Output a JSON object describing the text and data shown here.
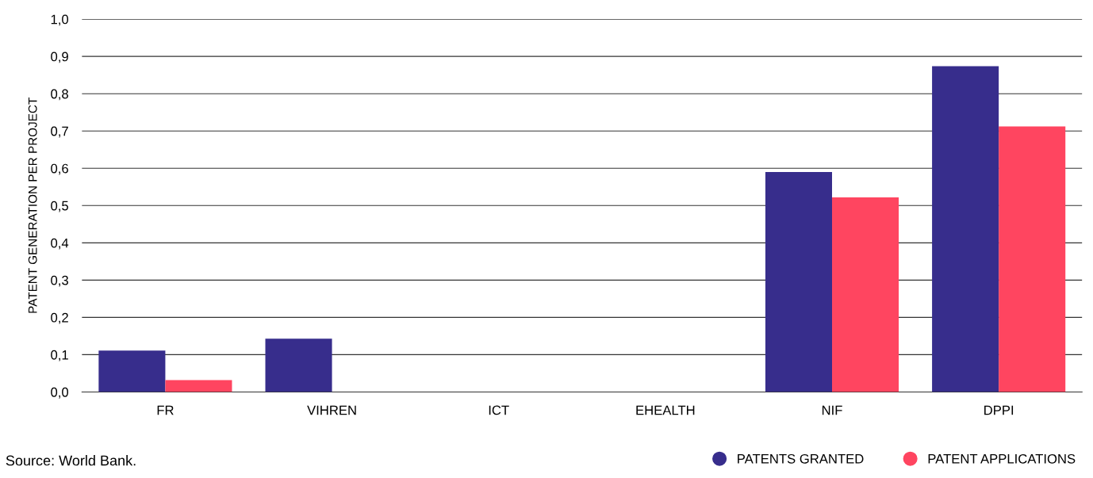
{
  "chart_data": {
    "type": "bar",
    "ylabel": "PATENT GENERATION PER PROJECT",
    "categories": [
      "FR",
      "VIHREN",
      "ICT",
      "EHEALTH",
      "NIF",
      "DPPI"
    ],
    "series": [
      {
        "name": "PATENTS GRANTED",
        "color": "#372d8c",
        "values": [
          0.111,
          0.143,
          0,
          0,
          0.59,
          0.874
        ]
      },
      {
        "name": "PATENT APPLICATIONS",
        "color": "#ff4560",
        "values": [
          0.032,
          0,
          0,
          0,
          0.522,
          0.712
        ]
      }
    ],
    "ylim": [
      0,
      1.0
    ],
    "yticks": [
      {
        "value": 0,
        "label": "0,0"
      },
      {
        "value": 0.1,
        "label": "0,1"
      },
      {
        "value": 0.2,
        "label": "0,2"
      },
      {
        "value": 0.3,
        "label": "0,3"
      },
      {
        "value": 0.4,
        "label": "0,4"
      },
      {
        "value": 0.5,
        "label": "0,5"
      },
      {
        "value": 0.6,
        "label": "0,6"
      },
      {
        "value": 0.7,
        "label": "0,7"
      },
      {
        "value": 0.8,
        "label": "0,8"
      },
      {
        "value": 0.9,
        "label": "0,9"
      },
      {
        "value": 1.0,
        "label": "1,0"
      }
    ],
    "grid": "y",
    "legend": "bottom right",
    "annotations": [
      "Source: World Bank."
    ]
  }
}
